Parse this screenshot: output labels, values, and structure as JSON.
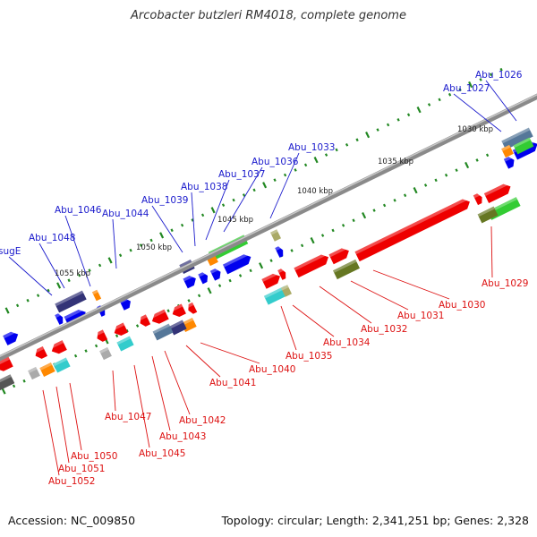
{
  "header": {
    "title": "Arcobacter butzleri RM4018, complete genome"
  },
  "footer": {
    "accession": "Accession: NC_009850",
    "summary": "Topology: circular; Length: 2,341,251 bp; Genes: 2,328"
  },
  "colors": {
    "forward_strand": "#0000ee",
    "reverse_strand": "#ee0000",
    "backbone": "#8a8a8a",
    "tick": "#228822",
    "cog_orange": "#ff8800",
    "cog_green": "#33cc33",
    "cog_olive": "#667722",
    "cog_teal": "#33cccc",
    "cog_navy": "#333377",
    "cog_slate": "#557799",
    "cog_khaki": "#aaaa66",
    "cog_grey": "#aaaaaa",
    "cog_darkgrey": "#555555"
  },
  "scale_labels": [
    "1030 kbp",
    "1035 kbp",
    "1040 kbp",
    "1045 kbp",
    "1050 kbp",
    "1055 kbp"
  ],
  "genes_top": [
    "Abu_1026",
    "Abu_1027",
    "Abu_1033",
    "Abu_1036",
    "Abu_1037",
    "Abu_1038",
    "Abu_1039",
    "Abu_1044",
    "Abu_1046",
    "Abu_1048",
    "sugE"
  ],
  "genes_bottom": [
    "Abu_1029",
    "Abu_1030",
    "Abu_1031",
    "Abu_1032",
    "Abu_1034",
    "Abu_1035",
    "Abu_1040",
    "Abu_1041",
    "Abu_1042",
    "Abu_1043",
    "Abu_1045",
    "Abu_1047",
    "Abu_1050",
    "Abu_1051",
    "Abu_1052"
  ]
}
